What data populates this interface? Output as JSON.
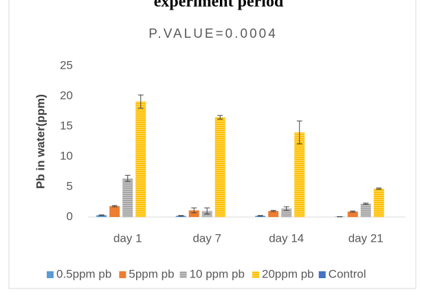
{
  "chart_data": {
    "type": "bar",
    "title": "experiment period",
    "subtitle": "P.VALUE=0.0004",
    "y_label": "Pb in water(ppm)",
    "categories": [
      "day 1",
      "day 7",
      "day 14",
      "day 21"
    ],
    "series": [
      {
        "name": "0.5ppm pb",
        "color": "#5b9bd5",
        "hatch": false,
        "values": [
          0.3,
          0.2,
          0.2,
          0.05
        ],
        "errors": [
          0.05,
          0.05,
          0.05,
          0.02
        ]
      },
      {
        "name": "5ppm pb",
        "color": "#ed7d31",
        "hatch": false,
        "values": [
          1.8,
          1.1,
          1.0,
          0.9
        ],
        "errors": [
          0.1,
          0.4,
          0.1,
          0.1
        ]
      },
      {
        "name": "10 ppm pb",
        "color": "#a5a5a5",
        "hatch": true,
        "values": [
          6.4,
          1.0,
          1.4,
          2.2
        ],
        "errors": [
          0.5,
          0.5,
          0.3,
          0.1
        ]
      },
      {
        "name": "20ppm pb",
        "color": "#ffc000",
        "hatch": true,
        "values": [
          19.1,
          16.5,
          14.0,
          4.7
        ],
        "errors": [
          1.1,
          0.3,
          1.9,
          0.1
        ]
      },
      {
        "name": "Control",
        "color": "#4472c4",
        "hatch": false,
        "values": [
          0,
          0,
          0,
          0
        ],
        "errors": [
          0,
          0,
          0,
          0
        ]
      }
    ],
    "ylim": [
      0,
      25
    ],
    "yticks": [
      0,
      5,
      10,
      15,
      20,
      25
    ],
    "grid": false,
    "legend": "bottom"
  }
}
